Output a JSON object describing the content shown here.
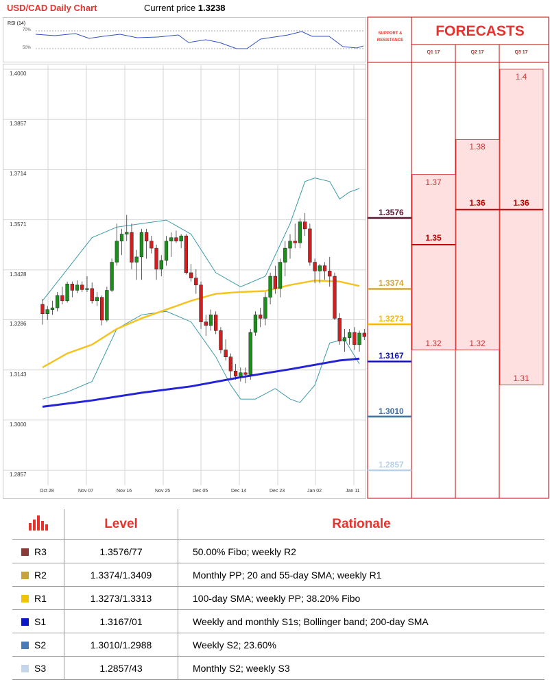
{
  "header": {
    "title": "USD/CAD Daily Chart",
    "current_price_label": "Current price",
    "current_price": "1.3238"
  },
  "rsi": {
    "label": "RSI (14)",
    "levels": [
      "70%",
      "50%"
    ]
  },
  "chart_data": {
    "type": "candlestick",
    "title": "USD/CAD Daily Chart",
    "x_ticks": [
      "Oct 28",
      "Nov 07",
      "Nov 16",
      "Nov 25",
      "Dec 05",
      "Dec 14",
      "Dec 23",
      "Jan 02",
      "Jan 11"
    ],
    "y_ticks": [
      "1.4000",
      "1.3857",
      "1.3714",
      "1.3571",
      "1.3428",
      "1.3286",
      "1.3143",
      "1.3000",
      "1.2857"
    ],
    "ylim": [
      1.28,
      1.404
    ],
    "candles": [
      [
        1.333,
        1.3345,
        1.3272,
        1.3303
      ],
      [
        1.3303,
        1.3325,
        1.3285,
        1.3315
      ],
      [
        1.3315,
        1.334,
        1.33,
        1.332
      ],
      [
        1.332,
        1.3365,
        1.331,
        1.3355
      ],
      [
        1.3355,
        1.338,
        1.333,
        1.334
      ],
      [
        1.334,
        1.3395,
        1.3335,
        1.3388
      ],
      [
        1.3388,
        1.3395,
        1.335,
        1.337
      ],
      [
        1.337,
        1.3398,
        1.3362,
        1.3385
      ],
      [
        1.3385,
        1.3395,
        1.3365,
        1.3372
      ],
      [
        1.3372,
        1.341,
        1.3365,
        1.3375
      ],
      [
        1.3375,
        1.3392,
        1.3332,
        1.334
      ],
      [
        1.334,
        1.3365,
        1.3325,
        1.335
      ],
      [
        1.335,
        1.3355,
        1.327,
        1.3285
      ],
      [
        1.3285,
        1.338,
        1.328,
        1.337
      ],
      [
        1.337,
        1.346,
        1.3365,
        1.345
      ],
      [
        1.345,
        1.356,
        1.344,
        1.351
      ],
      [
        1.351,
        1.3545,
        1.347,
        1.353
      ],
      [
        1.353,
        1.3585,
        1.351,
        1.3535
      ],
      [
        1.3535,
        1.356,
        1.343,
        1.345
      ],
      [
        1.345,
        1.3485,
        1.34,
        1.3465
      ],
      [
        1.3465,
        1.3545,
        1.34,
        1.3535
      ],
      [
        1.3535,
        1.3545,
        1.346,
        1.351
      ],
      [
        1.351,
        1.3525,
        1.3475,
        1.349
      ],
      [
        1.349,
        1.35,
        1.34,
        1.343
      ],
      [
        1.343,
        1.347,
        1.341,
        1.3455
      ],
      [
        1.3455,
        1.3525,
        1.344,
        1.351
      ],
      [
        1.351,
        1.3535,
        1.3465,
        1.352
      ],
      [
        1.352,
        1.354,
        1.3505,
        1.351
      ],
      [
        1.351,
        1.353,
        1.349,
        1.3525
      ],
      [
        1.3525,
        1.353,
        1.3415,
        1.342
      ],
      [
        1.342,
        1.3445,
        1.3395,
        1.3405
      ],
      [
        1.3405,
        1.343,
        1.336,
        1.3385
      ],
      [
        1.3385,
        1.3395,
        1.326,
        1.328
      ],
      [
        1.328,
        1.33,
        1.324,
        1.327
      ],
      [
        1.327,
        1.3315,
        1.3255,
        1.33
      ],
      [
        1.33,
        1.331,
        1.3245,
        1.3255
      ],
      [
        1.3255,
        1.3265,
        1.319,
        1.32
      ],
      [
        1.32,
        1.323,
        1.317,
        1.318
      ],
      [
        1.318,
        1.319,
        1.312,
        1.314
      ],
      [
        1.314,
        1.316,
        1.3115,
        1.3125
      ],
      [
        1.3125,
        1.315,
        1.311,
        1.3135
      ],
      [
        1.3135,
        1.315,
        1.3105,
        1.313
      ],
      [
        1.313,
        1.326,
        1.3115,
        1.325
      ],
      [
        1.325,
        1.331,
        1.324,
        1.33
      ],
      [
        1.33,
        1.332,
        1.3265,
        1.329
      ],
      [
        1.329,
        1.3365,
        1.327,
        1.335
      ],
      [
        1.335,
        1.342,
        1.333,
        1.341
      ],
      [
        1.341,
        1.344,
        1.336,
        1.3375
      ],
      [
        1.3375,
        1.346,
        1.335,
        1.345
      ],
      [
        1.345,
        1.351,
        1.341,
        1.349
      ],
      [
        1.349,
        1.353,
        1.346,
        1.351
      ],
      [
        1.351,
        1.356,
        1.349,
        1.3505
      ],
      [
        1.3505,
        1.3575,
        1.349,
        1.3565
      ],
      [
        1.3565,
        1.359,
        1.3525,
        1.3545
      ],
      [
        1.3545,
        1.356,
        1.344,
        1.345
      ],
      [
        1.345,
        1.346,
        1.339,
        1.3425
      ],
      [
        1.3425,
        1.3445,
        1.339,
        1.344
      ],
      [
        1.344,
        1.345,
        1.34,
        1.3425
      ],
      [
        1.3425,
        1.3465,
        1.338,
        1.341
      ],
      [
        1.341,
        1.342,
        1.3285,
        1.329
      ],
      [
        1.329,
        1.3305,
        1.3215,
        1.3225
      ],
      [
        1.3225,
        1.326,
        1.3195,
        1.3235
      ],
      [
        1.3235,
        1.326,
        1.3215,
        1.325
      ],
      [
        1.325,
        1.3265,
        1.32,
        1.3215
      ],
      [
        1.3215,
        1.3255,
        1.3195,
        1.3248
      ],
      [
        1.3248,
        1.326,
        1.3228,
        1.3238
      ]
    ],
    "sma_100": [
      [
        0,
        1.3038
      ],
      [
        10,
        1.3056
      ],
      [
        20,
        1.3078
      ],
      [
        30,
        1.3096
      ],
      [
        40,
        1.3122
      ],
      [
        50,
        1.3145
      ],
      [
        60,
        1.317
      ],
      [
        64,
        1.3175
      ]
    ],
    "sma_55": [
      [
        0,
        1.315
      ],
      [
        5,
        1.319
      ],
      [
        10,
        1.3215
      ],
      [
        15,
        1.326
      ],
      [
        20,
        1.329
      ],
      [
        25,
        1.3315
      ],
      [
        30,
        1.334
      ],
      [
        35,
        1.336
      ],
      [
        40,
        1.3365
      ],
      [
        45,
        1.3368
      ],
      [
        50,
        1.3385
      ],
      [
        55,
        1.3398
      ],
      [
        60,
        1.3395
      ],
      [
        64,
        1.3382
      ]
    ],
    "bb_upper": [
      [
        0,
        1.334
      ],
      [
        5,
        1.343
      ],
      [
        10,
        1.352
      ],
      [
        15,
        1.355
      ],
      [
        20,
        1.356
      ],
      [
        25,
        1.357
      ],
      [
        30,
        1.353
      ],
      [
        35,
        1.342
      ],
      [
        40,
        1.338
      ],
      [
        45,
        1.341
      ],
      [
        50,
        1.356
      ],
      [
        53,
        1.368
      ],
      [
        55,
        1.369
      ],
      [
        58,
        1.368
      ],
      [
        60,
        1.363
      ],
      [
        62,
        1.365
      ],
      [
        64,
        1.366
      ]
    ],
    "bb_lower": [
      [
        0,
        1.306
      ],
      [
        5,
        1.308
      ],
      [
        10,
        1.311
      ],
      [
        15,
        1.326
      ],
      [
        20,
        1.33
      ],
      [
        25,
        1.331
      ],
      [
        30,
        1.328
      ],
      [
        35,
        1.318
      ],
      [
        38,
        1.31
      ],
      [
        40,
        1.306
      ],
      [
        43,
        1.306
      ],
      [
        47,
        1.309
      ],
      [
        50,
        1.306
      ],
      [
        52,
        1.305
      ],
      [
        55,
        1.31
      ],
      [
        58,
        1.322
      ],
      [
        61,
        1.323
      ],
      [
        64,
        1.316
      ]
    ]
  },
  "support_resistance": {
    "title": "SUPPORT & RESISTANCE",
    "levels": [
      {
        "value": "1.3576",
        "price": 1.3576,
        "color": "#5a1530"
      },
      {
        "value": "1.3374",
        "price": 1.3374,
        "color": "#d3a63a"
      },
      {
        "value": "1.3273",
        "price": 1.3273,
        "color": "#f5b800"
      },
      {
        "value": "1.3167",
        "price": 1.3167,
        "color": "#0c0fb4"
      },
      {
        "value": "1.3010",
        "price": 1.301,
        "color": "#3d6ea6"
      },
      {
        "value": "1.2857",
        "price": 1.2857,
        "color": "#b8d1e8"
      }
    ]
  },
  "forecasts": {
    "title": "FORECASTS",
    "quarters": [
      "Q1 17",
      "Q2 17",
      "Q3 17"
    ],
    "values": [
      {
        "q": 0,
        "high": "1.37",
        "mid": "1.35",
        "low": "1.32"
      },
      {
        "q": 1,
        "high": "1.38",
        "mid": "1.36",
        "low": "1.32"
      },
      {
        "q": 2,
        "high": "1.4",
        "mid": "1.36",
        "low": "1.31"
      }
    ]
  },
  "table": {
    "headers": [
      "Level",
      "Rationale"
    ],
    "rows": [
      {
        "name": "R3",
        "level": "1.3576/77",
        "rationale": "50.00% Fibo; weekly R2",
        "color": "#8b3a3a"
      },
      {
        "name": "R2",
        "level": "1.3374/1.3409",
        "rationale": "Monthly PP; 20 and 55-day SMA; weekly R1",
        "color": "#c8a23c"
      },
      {
        "name": "R1",
        "level": "1.3273/1.3313",
        "rationale": "100-day SMA; weekly PP; 38.20% Fibo",
        "color": "#f2c400"
      },
      {
        "name": "S1",
        "level": "1.3167/01",
        "rationale": "Weekly and monthly S1s; Bollinger band; 200-day SMA",
        "color": "#0a18c8"
      },
      {
        "name": "S2",
        "level": "1.3010/1.2988",
        "rationale": "Weekly S2; 23.60%",
        "color": "#4a7ab7"
      },
      {
        "name": "S3",
        "level": "1.2857/43",
        "rationale": "Monthly S2; weekly S3",
        "color": "#c4d6ec"
      }
    ]
  }
}
